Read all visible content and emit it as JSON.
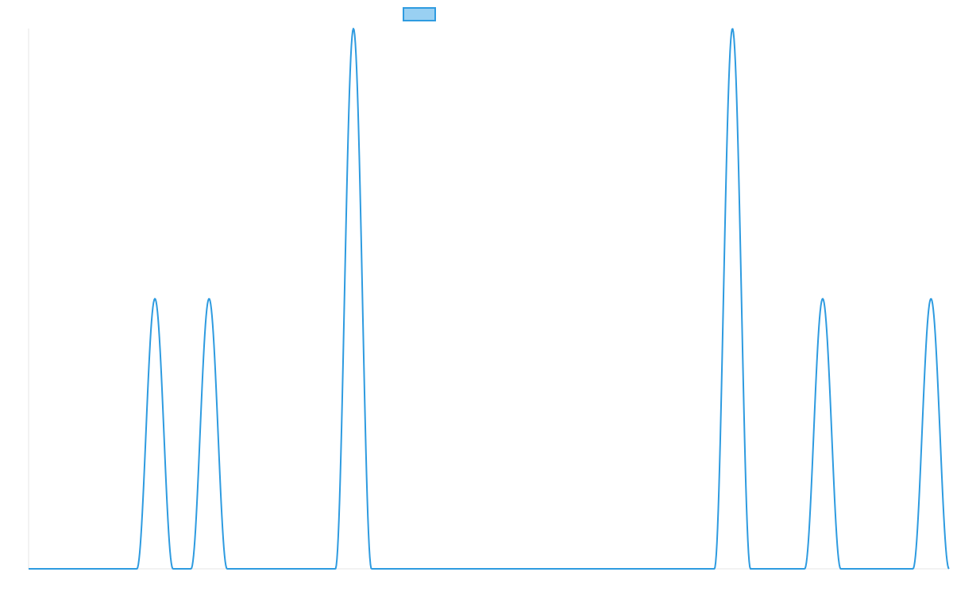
{
  "chart_data": {
    "type": "line",
    "title": "",
    "xlabel": "",
    "ylabel": "",
    "legend": {
      "placement": "top-center",
      "label": ""
    },
    "colors": {
      "line": "#2E9BE0",
      "legend_fill": "#99D0F2",
      "axis": "#E6E6E6"
    },
    "grid": false,
    "xlim": [
      0,
      51
    ],
    "ylim": [
      0,
      3
    ],
    "series": [
      {
        "name": "",
        "peaks": [
          {
            "center": 7.0,
            "height": 1.5,
            "half_width": 1.0
          },
          {
            "center": 10.0,
            "height": 1.5,
            "half_width": 1.0
          },
          {
            "center": 18.0,
            "height": 3.0,
            "half_width": 1.0
          },
          {
            "center": 39.0,
            "height": 3.0,
            "half_width": 1.0
          },
          {
            "center": 44.0,
            "height": 1.5,
            "half_width": 1.0
          },
          {
            "center": 50.0,
            "height": 1.5,
            "half_width": 1.0
          }
        ]
      }
    ]
  }
}
